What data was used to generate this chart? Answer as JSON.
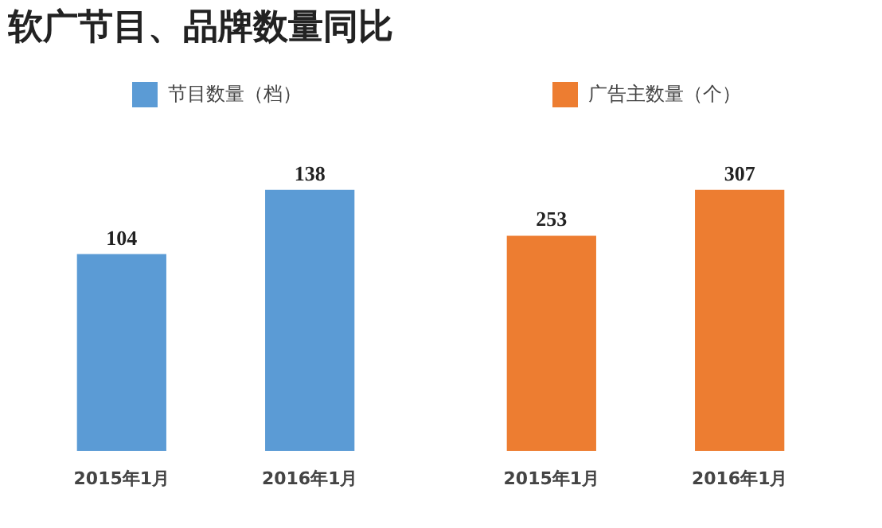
{
  "chart_data": [
    {
      "type": "bar",
      "title": "软广节目、品牌数量同比",
      "categories": [
        "2015年1月",
        "2016年1月"
      ],
      "series": [
        {
          "name": "节目数量（档）",
          "color": "#5b9bd5",
          "values": [
            104,
            138
          ]
        }
      ],
      "data_labels": true,
      "legend": "top",
      "grid": false
    },
    {
      "type": "bar",
      "categories": [
        "2015年1月",
        "2016年1月"
      ],
      "series": [
        {
          "name": "广告主数量（个）",
          "color": "#ed7d31",
          "values": [
            253,
            307
          ]
        }
      ],
      "data_labels": true,
      "legend": "top",
      "grid": false
    }
  ]
}
